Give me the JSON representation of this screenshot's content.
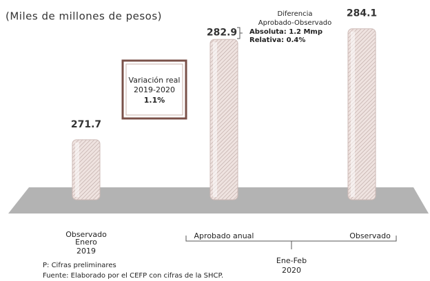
{
  "chart_data": {
    "type": "bar",
    "subtitle": "(Miles de millones de pesos)",
    "categories": [
      "Observado",
      "Aprobado anual",
      "Observado"
    ],
    "category_lines": [
      [
        "Enero",
        "2019"
      ],
      null,
      null
    ],
    "group_label": [
      "Ene-Feb",
      "2020"
    ],
    "values": [
      271.7,
      282.9,
      284.1
    ],
    "color": "#e8d8d4",
    "ylim": [
      265,
      285
    ],
    "annotations": {
      "variation": [
        "Variación real",
        "2019-2020",
        "1.1%"
      ],
      "difference": [
        "Diferencia",
        "Aprobado-Observado",
        "Absoluta: 1.2 Mmp",
        "Relativa: 0.4%"
      ]
    },
    "notes": [
      "P: Cifras preliminares",
      "Fuente: Elaborado por el CEFP con cifras de la SHCP."
    ]
  }
}
